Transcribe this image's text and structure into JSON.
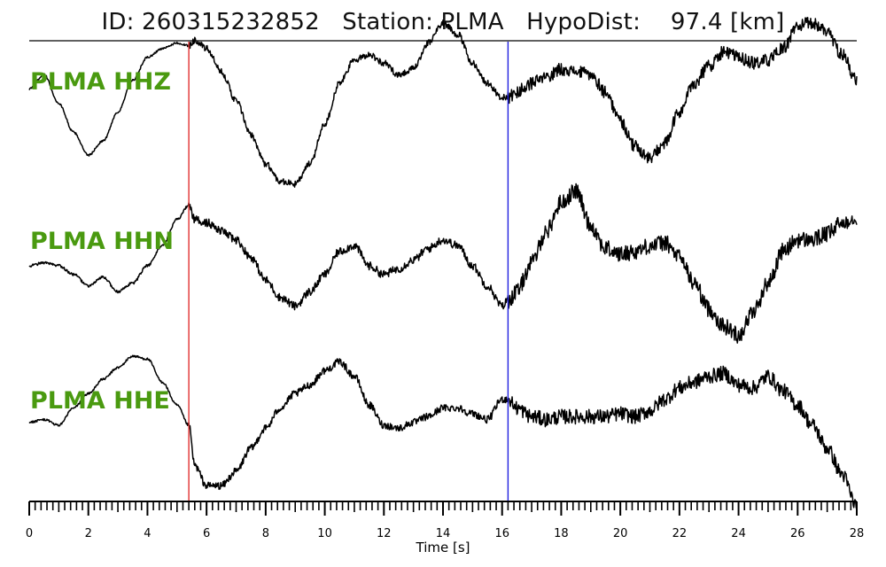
{
  "header": {
    "title": "ID: 260315232852   Station: PLMA   HypoDist:    97.4 [km]"
  },
  "chart_data": {
    "type": "line",
    "title": "ID: 260315232852   Station: PLMA   HypoDist:    97.4 [km]",
    "xlabel": "Time [s]",
    "ylabel": "",
    "xlim": [
      0,
      28
    ],
    "grid": false,
    "x_tick_labels": [
      "0",
      "2",
      "4",
      "6",
      "8",
      "10",
      "12",
      "14",
      "16",
      "18",
      "20",
      "22",
      "24",
      "26",
      "28"
    ],
    "minor_tick_step_s": 0.2,
    "picks": [
      {
        "time": 5.4,
        "color": "#e03030"
      },
      {
        "time": 16.2,
        "color": "#2020e0"
      }
    ],
    "label_color": "#4a9a10",
    "trace_color": "#000000",
    "series": [
      {
        "name": "PLMA HHZ",
        "x": [
          0,
          0.5,
          1,
          1.5,
          2,
          2.5,
          3,
          3.5,
          4,
          4.5,
          5,
          5.4,
          5.6,
          6,
          6.5,
          7,
          7.5,
          8,
          8.5,
          9,
          9.5,
          10,
          10.5,
          11,
          11.5,
          12,
          12.5,
          13,
          13.5,
          14,
          14.5,
          15,
          15.5,
          16,
          16.2,
          16.5,
          17,
          17.5,
          18,
          18.5,
          19,
          19.5,
          20,
          20.5,
          21,
          21.5,
          22,
          22.5,
          23,
          23.5,
          24,
          24.5,
          25,
          25.5,
          26,
          26.5,
          27,
          27.5,
          28
        ],
        "y": [
          0.3,
          0.55,
          0.05,
          -0.45,
          -0.85,
          -0.6,
          -0.1,
          0.45,
          0.85,
          1.0,
          1.1,
          1.05,
          1.15,
          1.0,
          0.6,
          0.1,
          -0.5,
          -1.0,
          -1.3,
          -1.35,
          -1.0,
          -0.3,
          0.4,
          0.8,
          0.9,
          0.75,
          0.55,
          0.65,
          1.1,
          1.45,
          1.25,
          0.75,
          0.4,
          0.15,
          0.15,
          0.25,
          0.4,
          0.5,
          0.65,
          0.6,
          0.55,
          0.25,
          -0.25,
          -0.7,
          -0.9,
          -0.65,
          -0.1,
          0.4,
          0.7,
          0.95,
          0.85,
          0.75,
          0.8,
          1.0,
          1.4,
          1.45,
          1.3,
          0.9,
          0.45
        ],
        "noise": 0.07
      },
      {
        "name": "PLMA HHN",
        "x": [
          0,
          0.5,
          1,
          1.5,
          2,
          2.5,
          3,
          3.5,
          4,
          4.5,
          5,
          5.4,
          5.6,
          6,
          6.5,
          7,
          7.5,
          8,
          8.5,
          9,
          9.5,
          10,
          10.5,
          11,
          11.5,
          12,
          12.5,
          13,
          13.5,
          14,
          14.5,
          15,
          15.5,
          16,
          16.2,
          16.5,
          17,
          17.5,
          18,
          18.5,
          19,
          19.5,
          20,
          20.5,
          21,
          21.5,
          22,
          22.5,
          23,
          23.5,
          24,
          24.5,
          25,
          25.5,
          26,
          26.5,
          27,
          27.5,
          28
        ],
        "y": [
          0.0,
          0.05,
          0.0,
          -0.15,
          -0.35,
          -0.2,
          -0.45,
          -0.3,
          0.0,
          0.35,
          0.8,
          1.05,
          0.8,
          0.75,
          0.6,
          0.45,
          0.15,
          -0.25,
          -0.55,
          -0.7,
          -0.45,
          -0.15,
          0.25,
          0.35,
          0.0,
          -0.15,
          -0.05,
          0.1,
          0.3,
          0.45,
          0.35,
          0.0,
          -0.35,
          -0.7,
          -0.6,
          -0.45,
          0.05,
          0.6,
          1.1,
          1.3,
          0.7,
          0.3,
          0.2,
          0.25,
          0.35,
          0.4,
          0.15,
          -0.3,
          -0.75,
          -1.05,
          -1.2,
          -0.8,
          -0.3,
          0.25,
          0.45,
          0.45,
          0.55,
          0.75,
          0.85
        ],
        "noise": 0.09
      },
      {
        "name": "PLMA HHE",
        "x": [
          0,
          0.5,
          1,
          1.5,
          2,
          2.5,
          3,
          3.5,
          4,
          4.5,
          5,
          5.4,
          5.6,
          6,
          6.5,
          7,
          7.5,
          8,
          8.5,
          9,
          9.5,
          10,
          10.5,
          11,
          11.5,
          12,
          12.5,
          13,
          13.5,
          14,
          14.5,
          15,
          15.5,
          16,
          16.2,
          16.5,
          17,
          17.5,
          18,
          18.5,
          19,
          19.5,
          20,
          20.5,
          21,
          21.5,
          22,
          22.5,
          23,
          23.5,
          24,
          24.5,
          25,
          25.5,
          26,
          26.5,
          27,
          27.5,
          28
        ],
        "y": [
          0.05,
          0.1,
          0.0,
          0.3,
          0.55,
          0.8,
          1.0,
          1.2,
          1.15,
          0.75,
          0.35,
          0.0,
          -0.7,
          -1.05,
          -1.05,
          -0.8,
          -0.4,
          -0.05,
          0.3,
          0.55,
          0.7,
          0.95,
          1.1,
          0.85,
          0.35,
          0.0,
          -0.05,
          0.05,
          0.15,
          0.3,
          0.3,
          0.2,
          0.1,
          0.45,
          0.45,
          0.3,
          0.15,
          0.1,
          0.15,
          0.15,
          0.15,
          0.15,
          0.2,
          0.15,
          0.25,
          0.45,
          0.65,
          0.75,
          0.85,
          0.9,
          0.7,
          0.65,
          0.85,
          0.6,
          0.35,
          0.0,
          -0.4,
          -0.85,
          -1.4
        ],
        "noise": 0.08
      }
    ]
  }
}
